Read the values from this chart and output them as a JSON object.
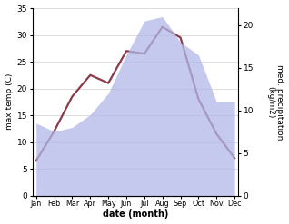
{
  "months": [
    "Jan",
    "Feb",
    "Mar",
    "Apr",
    "May",
    "Jun",
    "Jul",
    "Aug",
    "Sep",
    "Oct",
    "Nov",
    "Dec"
  ],
  "month_x": [
    0,
    1,
    2,
    3,
    4,
    5,
    6,
    7,
    8,
    9,
    10,
    11
  ],
  "temperature": [
    6.5,
    12.0,
    18.5,
    22.5,
    21.0,
    27.0,
    26.5,
    31.5,
    29.5,
    18.0,
    11.5,
    7.0
  ],
  "precipitation": [
    8.5,
    7.5,
    8.0,
    9.5,
    12.0,
    16.5,
    20.5,
    21.0,
    18.0,
    16.5,
    11.0,
    11.0
  ],
  "temp_ylim": [
    0,
    35
  ],
  "precip_ylim": [
    0,
    22
  ],
  "temp_yticks": [
    0,
    5,
    10,
    15,
    20,
    25,
    30,
    35
  ],
  "precip_yticks": [
    0,
    5,
    10,
    15,
    20
  ],
  "area_color": "#b0b8e8",
  "area_alpha": 0.75,
  "line_color": "#8b3a4a",
  "line_width": 1.6,
  "xlabel": "date (month)",
  "ylabel_left": "max temp (C)",
  "ylabel_right": "med. precipitation\n(kg/m2)",
  "bg_color": "#ffffff",
  "grid_color": "#d0d0d0",
  "ylabel_right_chars": [
    "m",
    "e",
    "d",
    ".",
    " ",
    "p",
    "r",
    "e",
    "c",
    "i",
    "p",
    "i",
    "t",
    "a",
    "t",
    "i",
    "o",
    "n",
    " ",
    "(",
    "k",
    "g",
    "/",
    "m",
    "2",
    ")"
  ]
}
